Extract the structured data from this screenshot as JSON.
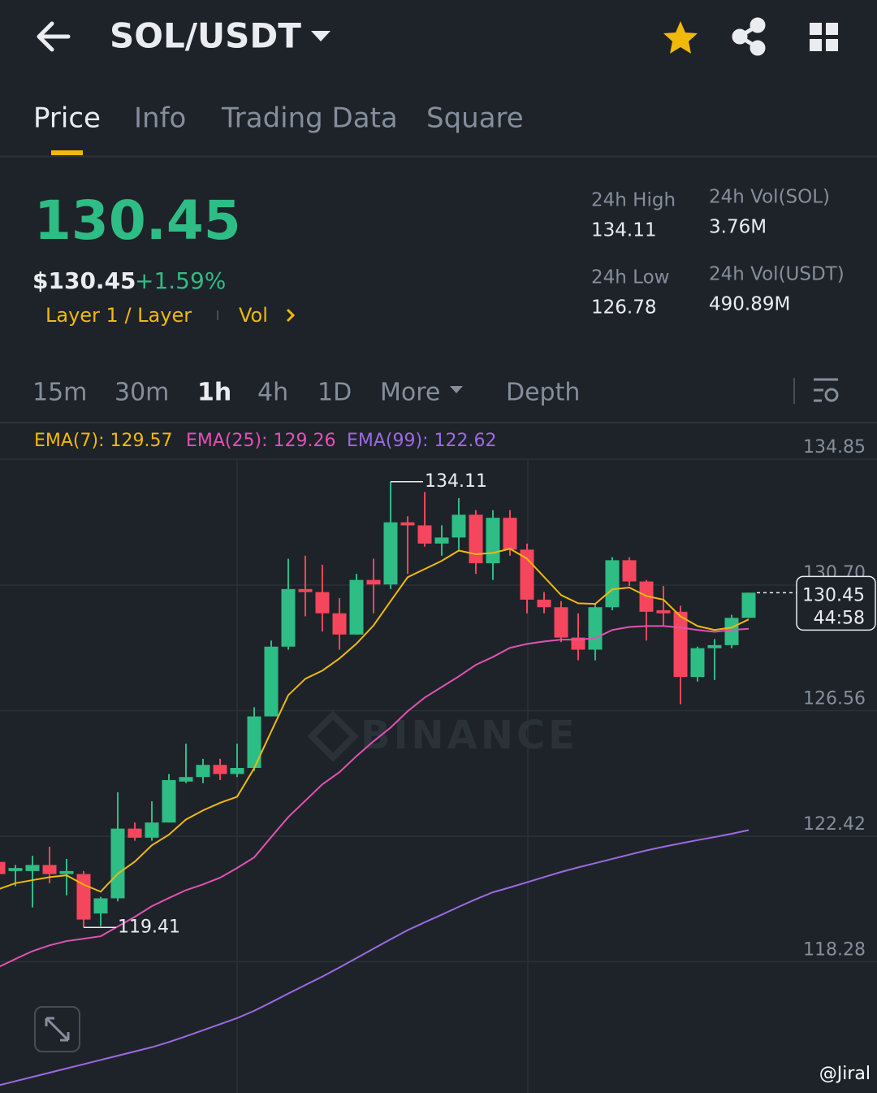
{
  "header": {
    "title": "SOL/USDT"
  },
  "tabs": [
    "Price",
    "Info",
    "Trading Data",
    "Square"
  ],
  "price": {
    "last": "130.45",
    "usd": "$130.45",
    "change": "+1.59%",
    "sector": "Layer 1 / Layer",
    "link": "Vol"
  },
  "stats": [
    {
      "label": "24h High",
      "value": "134.11"
    },
    {
      "label": "24h Vol(SOL)",
      "value": "3.76M"
    },
    {
      "label": "24h Low",
      "value": "126.78"
    },
    {
      "label": "24h Vol(USDT)",
      "value": "490.89M"
    }
  ],
  "intervals": [
    "15m",
    "30m",
    "1h",
    "4h",
    "1D",
    "More",
    "Depth"
  ],
  "chart_data": {
    "type": "candlestick",
    "watermark": "BINANCE",
    "up_color": "#2ebd85",
    "down_color": "#f6465d",
    "ylim": [
      113.95,
      136.06
    ],
    "yticks": [
      134.85,
      {
        "value": 130.7,
        "label": "130.70"
      },
      126.56,
      122.42,
      118.28
    ],
    "grid": true,
    "countdown": "44:58",
    "open": [
      121.57,
      121.27,
      121.27,
      121.47,
      121.17,
      121.17,
      119.87,
      120.37,
      122.67,
      122.37,
      122.87,
      124.22,
      124.37,
      124.77,
      124.47,
      124.67,
      126.37,
      128.67,
      130.57,
      130.47,
      129.77,
      129.07,
      130.87,
      130.72,
      132.77,
      132.67,
      132.07,
      132.27,
      133.02,
      131.42,
      132.92,
      131.87,
      130.22,
      129.97,
      128.97,
      128.57,
      129.97,
      131.52,
      130.82,
      129.87,
      129.82,
      127.67,
      128.62,
      128.72,
      129.62
    ],
    "high": [
      122.07,
      121.47,
      121.77,
      122.07,
      121.67,
      121.27,
      120.42,
      123.87,
      122.87,
      123.57,
      124.47,
      125.47,
      124.97,
      124.97,
      125.47,
      126.67,
      128.87,
      131.57,
      131.67,
      131.37,
      130.27,
      131.07,
      131.57,
      134.11,
      132.97,
      133.77,
      132.67,
      133.57,
      133.17,
      133.17,
      133.17,
      132.07,
      130.47,
      130.17,
      129.77,
      130.07,
      131.62,
      131.62,
      130.87,
      130.67,
      130.02,
      128.67,
      128.92,
      129.72,
      130.45
    ],
    "low": [
      120.87,
      120.77,
      120.07,
      120.87,
      120.47,
      119.41,
      119.45,
      120.27,
      122.27,
      122.27,
      122.87,
      124.17,
      124.17,
      124.27,
      124.37,
      124.57,
      126.37,
      128.57,
      129.67,
      129.17,
      128.57,
      129.07,
      129.77,
      130.57,
      131.07,
      131.97,
      131.67,
      131.87,
      131.07,
      130.87,
      131.67,
      129.77,
      129.77,
      128.82,
      128.22,
      128.22,
      129.87,
      130.67,
      128.87,
      129.37,
      126.77,
      127.52,
      127.57,
      128.62,
      129.62
    ],
    "close": [
      121.17,
      121.37,
      121.47,
      121.17,
      121.27,
      119.67,
      120.37,
      122.67,
      122.37,
      122.87,
      124.27,
      124.37,
      124.77,
      124.47,
      124.67,
      126.37,
      128.67,
      130.57,
      130.47,
      129.77,
      129.07,
      130.87,
      130.72,
      132.77,
      132.67,
      132.07,
      132.27,
      133.02,
      131.42,
      132.92,
      131.87,
      130.22,
      129.97,
      128.97,
      128.57,
      129.97,
      131.52,
      130.82,
      129.82,
      129.77,
      127.67,
      128.62,
      128.72,
      129.62,
      130.45
    ],
    "high_label_index": 23,
    "low_label_index": 5,
    "series": [
      {
        "name": "EMA(7): 129.57",
        "color": "#f0b90b",
        "values": [
          120.67,
          120.87,
          120.97,
          121.07,
          121.13,
          120.82,
          120.59,
          121.18,
          121.58,
          122.12,
          122.47,
          122.97,
          123.27,
          123.52,
          123.72,
          124.66,
          125.87,
          127.07,
          127.61,
          127.88,
          128.28,
          128.77,
          129.37,
          130.17,
          130.96,
          131.23,
          131.5,
          131.84,
          131.72,
          131.76,
          131.9,
          131.57,
          130.97,
          130.37,
          130.1,
          130.08,
          130.56,
          130.62,
          130.34,
          130.22,
          129.67,
          129.35,
          129.22,
          129.3,
          129.57
        ]
      },
      {
        "name": "EMA(25): 129.26",
        "color": "#e052b5",
        "values": [
          118.1,
          118.37,
          118.63,
          118.82,
          118.96,
          119.04,
          119.12,
          119.44,
          119.76,
          120.11,
          120.38,
          120.64,
          120.83,
          121.05,
          121.37,
          121.72,
          122.39,
          123.05,
          123.59,
          124.13,
          124.53,
          125.06,
          125.55,
          126.0,
          126.54,
          126.99,
          127.34,
          127.69,
          128.07,
          128.33,
          128.63,
          128.76,
          128.84,
          128.9,
          128.9,
          128.95,
          129.22,
          129.32,
          129.35,
          129.35,
          129.3,
          129.22,
          129.16,
          129.22,
          129.26
        ]
      },
      {
        "name": "EMA(99): 122.62",
        "color": "#9c6ae0",
        "values": [
          114.2,
          114.34,
          114.48,
          114.62,
          114.76,
          114.9,
          115.04,
          115.18,
          115.32,
          115.46,
          115.63,
          115.82,
          116.02,
          116.22,
          116.42,
          116.66,
          116.94,
          117.23,
          117.51,
          117.79,
          118.09,
          118.4,
          118.71,
          119.02,
          119.32,
          119.58,
          119.83,
          120.09,
          120.34,
          120.57,
          120.73,
          120.9,
          121.07,
          121.24,
          121.39,
          121.53,
          121.67,
          121.81,
          121.95,
          122.07,
          122.18,
          122.29,
          122.39,
          122.5,
          122.62
        ]
      }
    ]
  },
  "credit": "@Jiral"
}
